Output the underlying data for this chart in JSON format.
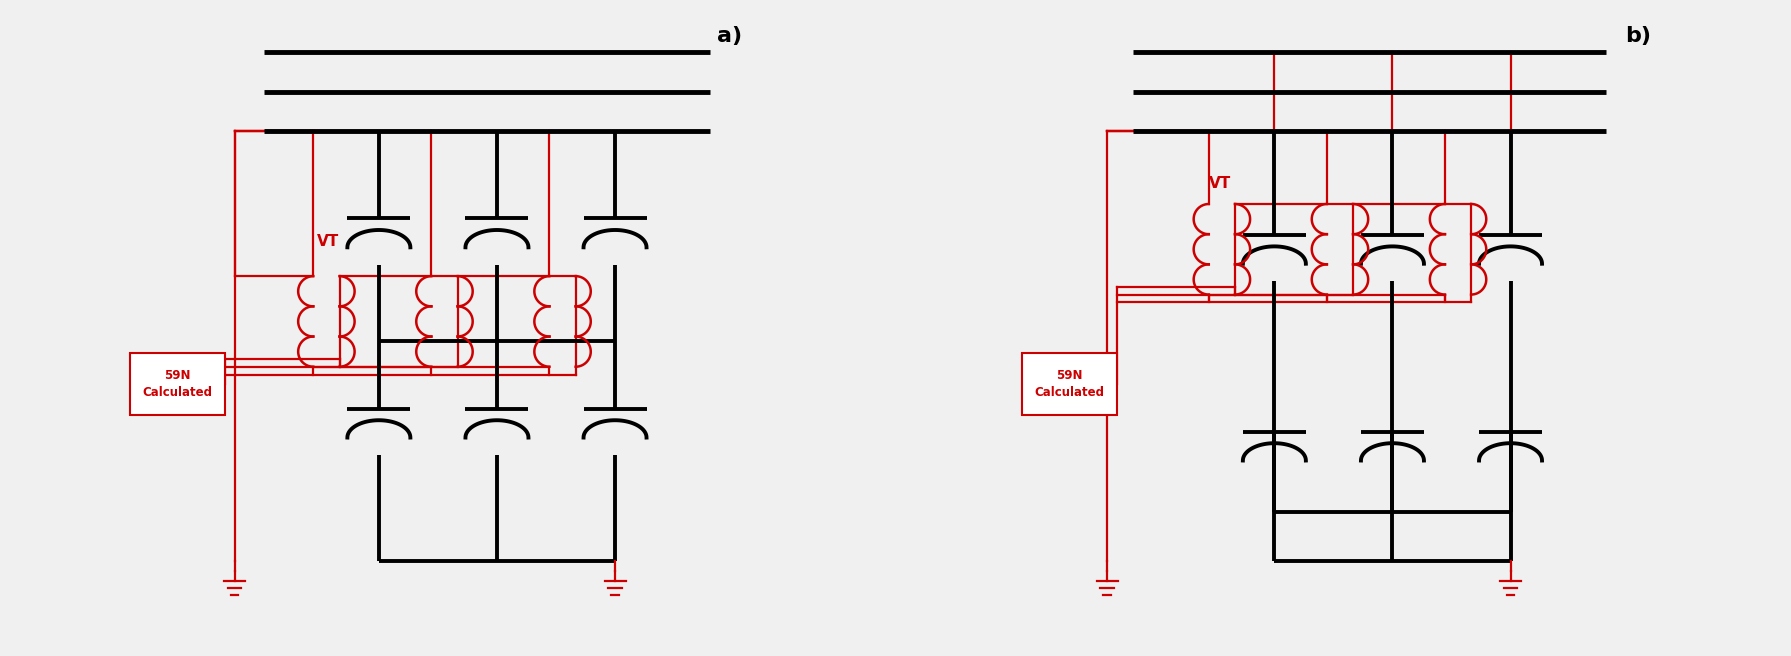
{
  "bg_color": "#f0f0f0",
  "black": "#000000",
  "red": "#cc0000",
  "lw_bus": 3.5,
  "lw_wire": 2.8,
  "lw_red": 1.6,
  "panel_a_label": "a)",
  "panel_b_label": "b)",
  "label_59n": "59N\nCalculated",
  "label_vt": "VT",
  "figsize": [
    17.91,
    6.56
  ],
  "dpi": 100
}
